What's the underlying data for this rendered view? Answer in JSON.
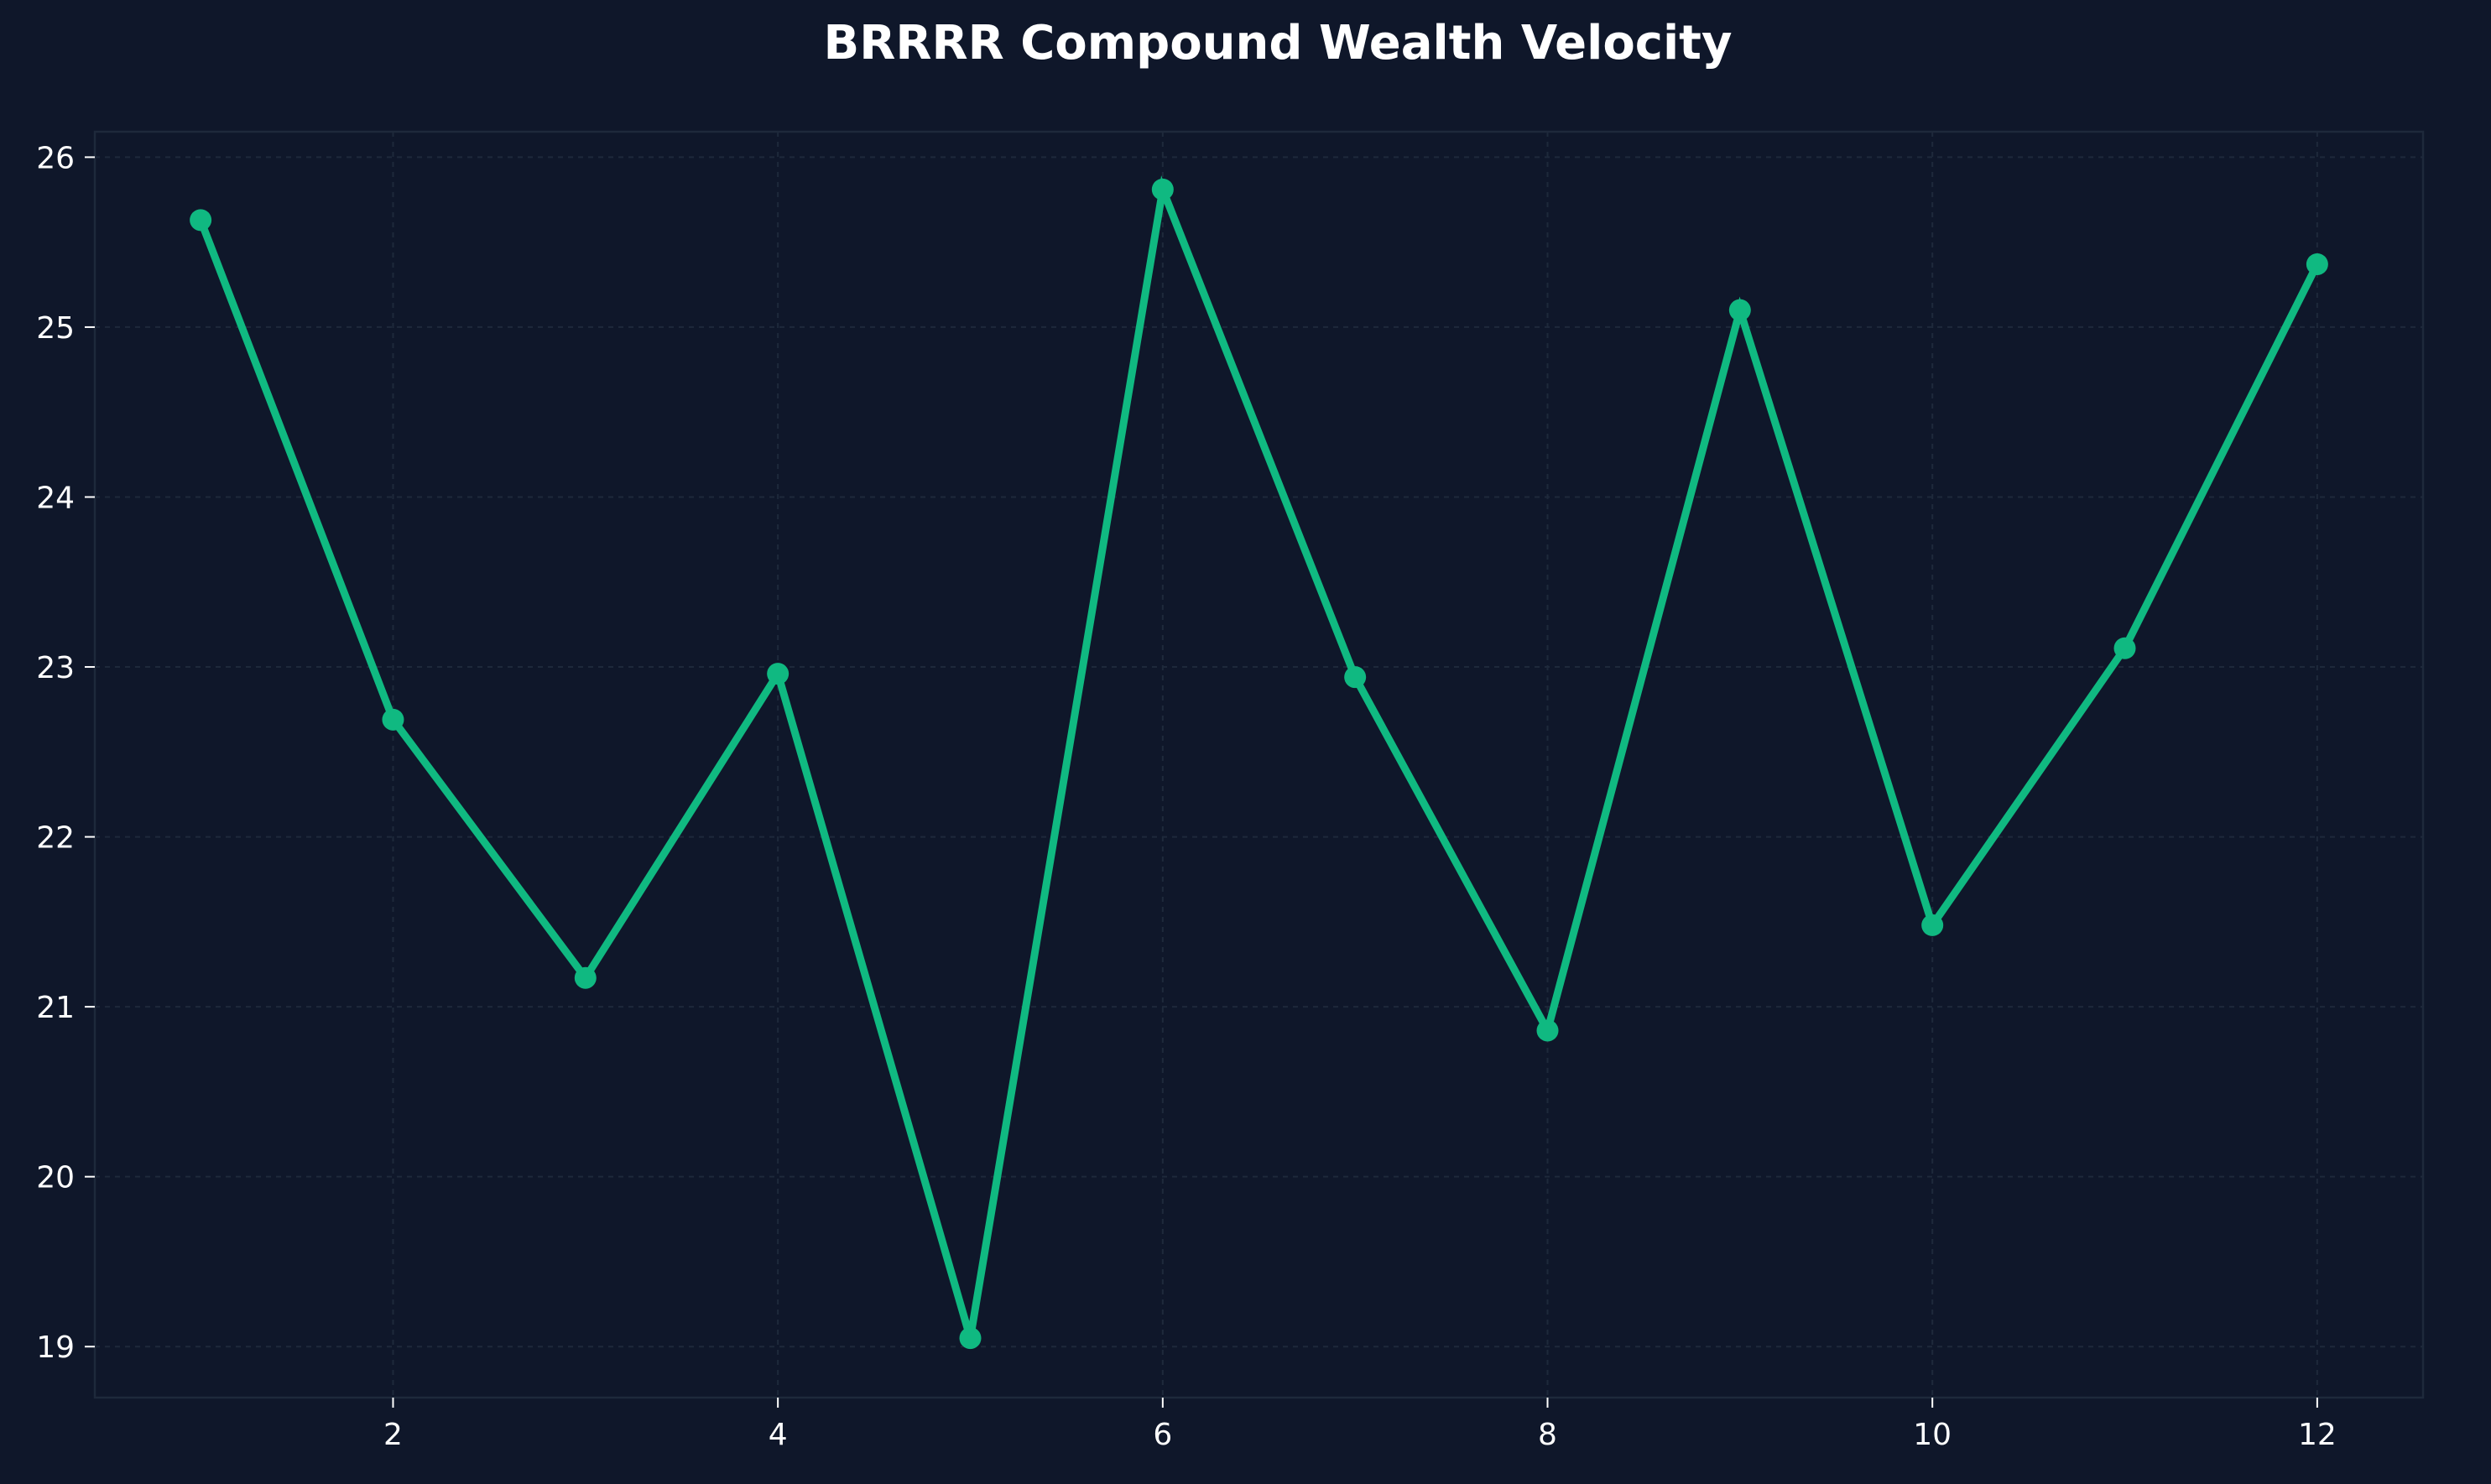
{
  "colors": {
    "background": "#0f172a",
    "plot_background": "#0f172a",
    "line": "#10b981",
    "text": "#ffffff",
    "grid": "#1e293b"
  },
  "chart_data": {
    "type": "line",
    "title": "BRRRR Compound Wealth Velocity",
    "xlabel": "",
    "ylabel": "",
    "x": [
      1,
      2,
      3,
      4,
      5,
      6,
      7,
      8,
      9,
      10,
      11,
      12
    ],
    "series": [
      {
        "values": [
          25.63,
          22.69,
          21.17,
          22.96,
          19.05,
          25.81,
          22.94,
          20.86,
          25.1,
          21.48,
          23.11,
          25.37
        ]
      }
    ],
    "xlim": [
      0.45,
      12.55
    ],
    "ylim": [
      18.7,
      26.15
    ],
    "xticks": [
      2,
      4,
      6,
      8,
      10,
      12
    ],
    "yticks": [
      19,
      20,
      21,
      22,
      23,
      24,
      25,
      26
    ],
    "grid": true,
    "legend": "none",
    "markers": "circle"
  }
}
